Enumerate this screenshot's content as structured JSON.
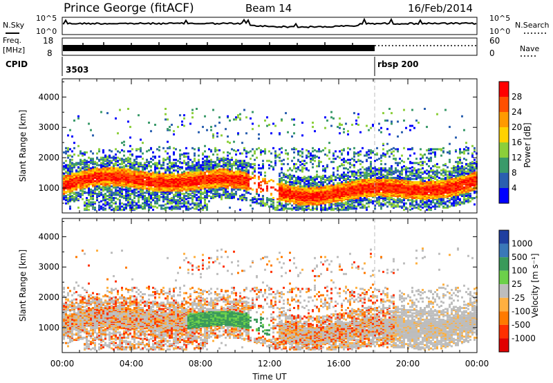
{
  "header": {
    "station": "Prince George (fitACF)",
    "beam": "Beam 14",
    "date": "16/Feb/2014"
  },
  "panels": {
    "nsky_label": "N.Sky",
    "nsearch_label": "N.Search",
    "freq_label_1": "Freq.",
    "freq_label_2": "[MHz]",
    "nave_label": "Nave",
    "cpid_label": "CPID",
    "cpid_values": [
      "3503",
      "rbsp 200"
    ],
    "nsky_ticks": [
      "10^5",
      "10^0"
    ],
    "nsearch_ticks": [
      "10^5",
      "10^0"
    ],
    "freq_ticks": [
      "18",
      "8"
    ],
    "nave_ticks": [
      "60",
      "0"
    ]
  },
  "chart_data": [
    {
      "type": "heatmap",
      "name": "Power",
      "ylabel": "Slant Range [km]",
      "xlabel": "Time UT",
      "x_ticks": [
        "00:00",
        "04:00",
        "08:00",
        "12:00",
        "16:00",
        "20:00",
        "00:00"
      ],
      "y_ticks": [
        "1000",
        "2000",
        "3000",
        "4000"
      ],
      "ylim": [
        180,
        4600
      ],
      "colorbar_label": "Power [dB]",
      "colorbar_ticks": [
        "28",
        "24",
        "20",
        "16",
        "12",
        "8",
        "4"
      ],
      "colors": [
        "#ff0000",
        "#ff5000",
        "#ff9a00",
        "#ffd200",
        "#8ccf3a",
        "#3a9a6a",
        "#2a5fb0",
        "#0000ff"
      ]
    },
    {
      "type": "heatmap",
      "name": "Velocity",
      "ylabel": "Slant Range [km]",
      "xlabel": "Time UT",
      "x_ticks": [
        "00:00",
        "04:00",
        "08:00",
        "12:00",
        "16:00",
        "20:00",
        "00:00"
      ],
      "y_ticks": [
        "1000",
        "2000",
        "3000",
        "4000"
      ],
      "ylim": [
        180,
        4600
      ],
      "colorbar_label": "Velocity [m s⁻¹]",
      "colorbar_ticks": [
        "1000",
        "500",
        "100",
        "25",
        "-25",
        "-100",
        "-500",
        "-1000"
      ],
      "colors": [
        "#1f3fa0",
        "#3a78b8",
        "#3a9a5a",
        "#6cd04a",
        "#bdbdbd",
        "#ffb040",
        "#ff7a00",
        "#ff3000",
        "#e00000"
      ]
    }
  ]
}
